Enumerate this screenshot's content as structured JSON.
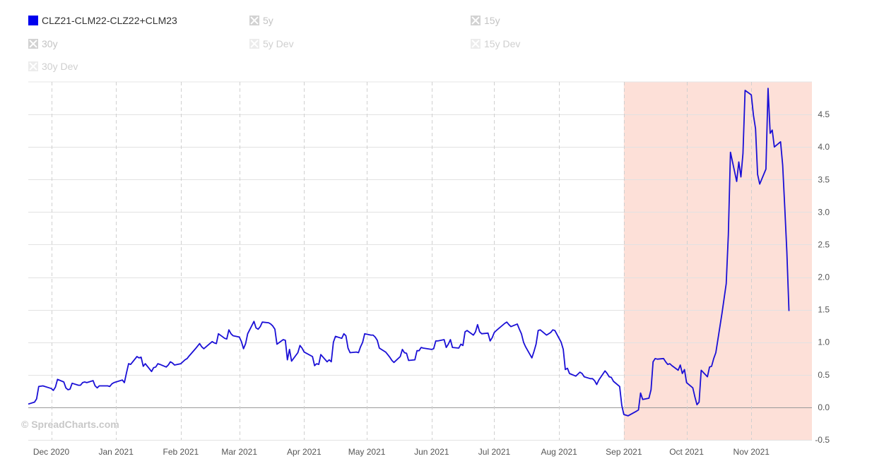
{
  "legend": [
    {
      "label": "CLZ21-CLM22-CLZ22+CLM23",
      "state": "active",
      "color": "#0000ee"
    },
    {
      "label": "5y",
      "state": "off"
    },
    {
      "label": "15y",
      "state": "off"
    },
    {
      "label": "30y",
      "state": "off"
    },
    {
      "label": "5y Dev",
      "state": "faint"
    },
    {
      "label": "15y Dev",
      "state": "faint"
    },
    {
      "label": "30y Dev",
      "state": "faint"
    }
  ],
  "watermark": "© SpreadCharts.com",
  "colors": {
    "series": "#1a0fd6",
    "highlight": "#fde0d8"
  },
  "chart_data": {
    "type": "line",
    "title": "",
    "xlabel": "",
    "ylabel": "",
    "y_axis_position": "right",
    "ylim": [
      -0.5,
      5.0
    ],
    "yticks": [
      "-0.5",
      "0.0",
      "0.5",
      "1.0",
      "1.5",
      "2.0",
      "2.5",
      "3.0",
      "3.5",
      "4.0",
      "4.5"
    ],
    "x_range": [
      "2020-11-20",
      "2021-11-30"
    ],
    "xticks": [
      {
        "date": "2020-12-01",
        "label": "Dec 2020"
      },
      {
        "date": "2021-01-01",
        "label": "Jan 2021"
      },
      {
        "date": "2021-02-01",
        "label": "Feb 2021"
      },
      {
        "date": "2021-03-01",
        "label": "Mar 2021"
      },
      {
        "date": "2021-04-01",
        "label": "Apr 2021"
      },
      {
        "date": "2021-05-01",
        "label": "May 2021"
      },
      {
        "date": "2021-06-01",
        "label": "Jun 2021"
      },
      {
        "date": "2021-07-01",
        "label": "Jul 2021"
      },
      {
        "date": "2021-08-01",
        "label": "Aug 2021"
      },
      {
        "date": "2021-09-01",
        "label": "Sep 2021"
      },
      {
        "date": "2021-10-01",
        "label": "Oct 2021"
      },
      {
        "date": "2021-11-01",
        "label": "Nov 2021"
      }
    ],
    "highlight_band": [
      "2021-09-01",
      "2021-11-30"
    ],
    "grid": true,
    "series": [
      {
        "name": "CLZ21-CLM22-CLZ22+CLM23",
        "points": [
          [
            "2020-11-20",
            0.05
          ],
          [
            "2020-11-23",
            0.08
          ],
          [
            "2020-11-24",
            0.13
          ],
          [
            "2020-11-25",
            0.32
          ],
          [
            "2020-11-27",
            0.33
          ],
          [
            "2020-11-30",
            0.3
          ],
          [
            "2020-12-01",
            0.29
          ],
          [
            "2020-12-02",
            0.26
          ],
          [
            "2020-12-03",
            0.31
          ],
          [
            "2020-12-04",
            0.43
          ],
          [
            "2020-12-07",
            0.39
          ],
          [
            "2020-12-08",
            0.3
          ],
          [
            "2020-12-09",
            0.27
          ],
          [
            "2020-12-10",
            0.28
          ],
          [
            "2020-12-11",
            0.37
          ],
          [
            "2020-12-14",
            0.34
          ],
          [
            "2020-12-15",
            0.34
          ],
          [
            "2020-12-16",
            0.38
          ],
          [
            "2020-12-17",
            0.39
          ],
          [
            "2020-12-18",
            0.38
          ],
          [
            "2020-12-21",
            0.41
          ],
          [
            "2020-12-22",
            0.33
          ],
          [
            "2020-12-23",
            0.3
          ],
          [
            "2020-12-24",
            0.33
          ],
          [
            "2020-12-28",
            0.33
          ],
          [
            "2020-12-29",
            0.32
          ],
          [
            "2020-12-30",
            0.36
          ],
          [
            "2020-12-31",
            0.38
          ],
          [
            "2021-01-04",
            0.42
          ],
          [
            "2021-01-05",
            0.38
          ],
          [
            "2021-01-06",
            0.53
          ],
          [
            "2021-01-07",
            0.67
          ],
          [
            "2021-01-08",
            0.66
          ],
          [
            "2021-01-11",
            0.78
          ],
          [
            "2021-01-12",
            0.76
          ],
          [
            "2021-01-13",
            0.77
          ],
          [
            "2021-01-14",
            0.63
          ],
          [
            "2021-01-15",
            0.67
          ],
          [
            "2021-01-18",
            0.55
          ],
          [
            "2021-01-19",
            0.61
          ],
          [
            "2021-01-20",
            0.62
          ],
          [
            "2021-01-21",
            0.67
          ],
          [
            "2021-01-22",
            0.66
          ],
          [
            "2021-01-25",
            0.62
          ],
          [
            "2021-01-26",
            0.65
          ],
          [
            "2021-01-27",
            0.7
          ],
          [
            "2021-01-28",
            0.68
          ],
          [
            "2021-01-29",
            0.65
          ],
          [
            "2021-02-01",
            0.67
          ],
          [
            "2021-02-02",
            0.7
          ],
          [
            "2021-02-03",
            0.73
          ],
          [
            "2021-02-04",
            0.75
          ],
          [
            "2021-02-05",
            0.79
          ],
          [
            "2021-02-08",
            0.9
          ],
          [
            "2021-02-09",
            0.94
          ],
          [
            "2021-02-10",
            0.98
          ],
          [
            "2021-02-11",
            0.93
          ],
          [
            "2021-02-12",
            0.9
          ],
          [
            "2021-02-16",
            1.01
          ],
          [
            "2021-02-17",
            0.99
          ],
          [
            "2021-02-18",
            0.98
          ],
          [
            "2021-02-19",
            1.13
          ],
          [
            "2021-02-22",
            1.06
          ],
          [
            "2021-02-23",
            1.05
          ],
          [
            "2021-02-24",
            1.19
          ],
          [
            "2021-02-25",
            1.13
          ],
          [
            "2021-02-26",
            1.1
          ],
          [
            "2021-03-01",
            1.08
          ],
          [
            "2021-03-02",
            1.01
          ],
          [
            "2021-03-03",
            0.9
          ],
          [
            "2021-03-04",
            0.98
          ],
          [
            "2021-03-05",
            1.13
          ],
          [
            "2021-03-08",
            1.32
          ],
          [
            "2021-03-09",
            1.22
          ],
          [
            "2021-03-10",
            1.2
          ],
          [
            "2021-03-11",
            1.24
          ],
          [
            "2021-03-12",
            1.31
          ],
          [
            "2021-03-15",
            1.3
          ],
          [
            "2021-03-16",
            1.28
          ],
          [
            "2021-03-17",
            1.25
          ],
          [
            "2021-03-18",
            1.2
          ],
          [
            "2021-03-19",
            0.97
          ],
          [
            "2021-03-22",
            1.04
          ],
          [
            "2021-03-23",
            1.03
          ],
          [
            "2021-03-24",
            0.73
          ],
          [
            "2021-03-25",
            0.89
          ],
          [
            "2021-03-26",
            0.71
          ],
          [
            "2021-03-29",
            0.84
          ],
          [
            "2021-03-30",
            0.95
          ],
          [
            "2021-03-31",
            0.91
          ],
          [
            "2021-04-01",
            0.85
          ],
          [
            "2021-04-05",
            0.78
          ],
          [
            "2021-04-06",
            0.64
          ],
          [
            "2021-04-07",
            0.67
          ],
          [
            "2021-04-08",
            0.66
          ],
          [
            "2021-04-09",
            0.81
          ],
          [
            "2021-04-12",
            0.7
          ],
          [
            "2021-04-13",
            0.73
          ],
          [
            "2021-04-14",
            0.7
          ],
          [
            "2021-04-15",
            1.0
          ],
          [
            "2021-04-16",
            1.09
          ],
          [
            "2021-04-19",
            1.06
          ],
          [
            "2021-04-20",
            1.13
          ],
          [
            "2021-04-21",
            1.1
          ],
          [
            "2021-04-22",
            0.91
          ],
          [
            "2021-04-23",
            0.84
          ],
          [
            "2021-04-26",
            0.85
          ],
          [
            "2021-04-27",
            0.84
          ],
          [
            "2021-04-28",
            0.93
          ],
          [
            "2021-04-29",
            1.0
          ],
          [
            "2021-04-30",
            1.13
          ],
          [
            "2021-05-03",
            1.11
          ],
          [
            "2021-05-04",
            1.11
          ],
          [
            "2021-05-05",
            1.08
          ],
          [
            "2021-05-06",
            1.03
          ],
          [
            "2021-05-07",
            0.91
          ],
          [
            "2021-05-10",
            0.85
          ],
          [
            "2021-05-11",
            0.81
          ],
          [
            "2021-05-12",
            0.77
          ],
          [
            "2021-05-13",
            0.72
          ],
          [
            "2021-05-14",
            0.69
          ],
          [
            "2021-05-17",
            0.78
          ],
          [
            "2021-05-18",
            0.89
          ],
          [
            "2021-05-19",
            0.84
          ],
          [
            "2021-05-20",
            0.83
          ],
          [
            "2021-05-21",
            0.72
          ],
          [
            "2021-05-24",
            0.73
          ],
          [
            "2021-05-25",
            0.87
          ],
          [
            "2021-05-26",
            0.87
          ],
          [
            "2021-05-27",
            0.92
          ],
          [
            "2021-05-28",
            0.91
          ],
          [
            "2021-06-01",
            0.89
          ],
          [
            "2021-06-02",
            0.9
          ],
          [
            "2021-06-03",
            1.02
          ],
          [
            "2021-06-04",
            1.02
          ],
          [
            "2021-06-07",
            1.04
          ],
          [
            "2021-06-08",
            0.92
          ],
          [
            "2021-06-09",
            0.97
          ],
          [
            "2021-06-10",
            1.04
          ],
          [
            "2021-06-11",
            0.92
          ],
          [
            "2021-06-14",
            0.91
          ],
          [
            "2021-06-15",
            0.97
          ],
          [
            "2021-06-16",
            0.95
          ],
          [
            "2021-06-17",
            1.16
          ],
          [
            "2021-06-18",
            1.18
          ],
          [
            "2021-06-21",
            1.11
          ],
          [
            "2021-06-22",
            1.16
          ],
          [
            "2021-06-23",
            1.27
          ],
          [
            "2021-06-24",
            1.16
          ],
          [
            "2021-06-25",
            1.13
          ],
          [
            "2021-06-28",
            1.14
          ],
          [
            "2021-06-29",
            1.02
          ],
          [
            "2021-06-30",
            1.07
          ],
          [
            "2021-07-01",
            1.15
          ],
          [
            "2021-07-02",
            1.18
          ],
          [
            "2021-07-06",
            1.29
          ],
          [
            "2021-07-07",
            1.31
          ],
          [
            "2021-07-08",
            1.27
          ],
          [
            "2021-07-09",
            1.24
          ],
          [
            "2021-07-12",
            1.28
          ],
          [
            "2021-07-13",
            1.2
          ],
          [
            "2021-07-14",
            1.13
          ],
          [
            "2021-07-15",
            1.0
          ],
          [
            "2021-07-16",
            0.93
          ],
          [
            "2021-07-19",
            0.76
          ],
          [
            "2021-07-20",
            0.86
          ],
          [
            "2021-07-21",
            0.97
          ],
          [
            "2021-07-22",
            1.18
          ],
          [
            "2021-07-23",
            1.19
          ],
          [
            "2021-07-26",
            1.11
          ],
          [
            "2021-07-27",
            1.13
          ],
          [
            "2021-07-28",
            1.15
          ],
          [
            "2021-07-29",
            1.19
          ],
          [
            "2021-07-30",
            1.18
          ],
          [
            "2021-08-02",
            1.0
          ],
          [
            "2021-08-03",
            0.89
          ],
          [
            "2021-08-04",
            0.58
          ],
          [
            "2021-08-05",
            0.6
          ],
          [
            "2021-08-06",
            0.52
          ],
          [
            "2021-08-09",
            0.48
          ],
          [
            "2021-08-10",
            0.51
          ],
          [
            "2021-08-11",
            0.54
          ],
          [
            "2021-08-12",
            0.52
          ],
          [
            "2021-08-13",
            0.47
          ],
          [
            "2021-08-16",
            0.44
          ],
          [
            "2021-08-17",
            0.44
          ],
          [
            "2021-08-18",
            0.41
          ],
          [
            "2021-08-19",
            0.35
          ],
          [
            "2021-08-20",
            0.42
          ],
          [
            "2021-08-23",
            0.56
          ],
          [
            "2021-08-24",
            0.52
          ],
          [
            "2021-08-25",
            0.47
          ],
          [
            "2021-08-26",
            0.46
          ],
          [
            "2021-08-27",
            0.4
          ],
          [
            "2021-08-30",
            0.32
          ],
          [
            "2021-08-31",
            0.03
          ],
          [
            "2021-09-01",
            -0.11
          ],
          [
            "2021-09-02",
            -0.12
          ],
          [
            "2021-09-03",
            -0.13
          ],
          [
            "2021-09-07",
            -0.06
          ],
          [
            "2021-09-08",
            -0.04
          ],
          [
            "2021-09-09",
            0.22
          ],
          [
            "2021-09-10",
            0.12
          ],
          [
            "2021-09-13",
            0.14
          ],
          [
            "2021-09-14",
            0.27
          ],
          [
            "2021-09-15",
            0.7
          ],
          [
            "2021-09-16",
            0.75
          ],
          [
            "2021-09-17",
            0.74
          ],
          [
            "2021-09-20",
            0.75
          ],
          [
            "2021-09-21",
            0.7
          ],
          [
            "2021-09-22",
            0.66
          ],
          [
            "2021-09-23",
            0.67
          ],
          [
            "2021-09-24",
            0.64
          ],
          [
            "2021-09-27",
            0.57
          ],
          [
            "2021-09-28",
            0.65
          ],
          [
            "2021-09-29",
            0.52
          ],
          [
            "2021-09-30",
            0.58
          ],
          [
            "2021-10-01",
            0.38
          ],
          [
            "2021-10-04",
            0.3
          ],
          [
            "2021-10-05",
            0.16
          ],
          [
            "2021-10-06",
            0.04
          ],
          [
            "2021-10-07",
            0.08
          ],
          [
            "2021-10-08",
            0.57
          ],
          [
            "2021-10-11",
            0.47
          ],
          [
            "2021-10-12",
            0.62
          ],
          [
            "2021-10-13",
            0.63
          ],
          [
            "2021-10-14",
            0.75
          ],
          [
            "2021-10-15",
            0.84
          ],
          [
            "2021-10-18",
            1.45
          ],
          [
            "2021-10-20",
            1.9
          ],
          [
            "2021-10-21",
            2.65
          ],
          [
            "2021-10-22",
            3.92
          ],
          [
            "2021-10-25",
            3.47
          ],
          [
            "2021-10-26",
            3.77
          ],
          [
            "2021-10-27",
            3.54
          ],
          [
            "2021-10-28",
            3.9
          ],
          [
            "2021-10-29",
            4.87
          ],
          [
            "2021-11-01",
            4.8
          ],
          [
            "2021-11-02",
            4.49
          ],
          [
            "2021-11-03",
            4.28
          ],
          [
            "2021-11-04",
            3.58
          ],
          [
            "2021-11-05",
            3.43
          ],
          [
            "2021-11-08",
            3.66
          ],
          [
            "2021-11-09",
            4.9
          ],
          [
            "2021-11-10",
            4.21
          ],
          [
            "2021-11-11",
            4.26
          ],
          [
            "2021-11-12",
            4.0
          ],
          [
            "2021-11-15",
            4.08
          ],
          [
            "2021-11-16",
            3.72
          ],
          [
            "2021-11-17",
            3.06
          ],
          [
            "2021-11-18",
            2.39
          ],
          [
            "2021-11-19",
            1.48
          ]
        ]
      }
    ]
  }
}
